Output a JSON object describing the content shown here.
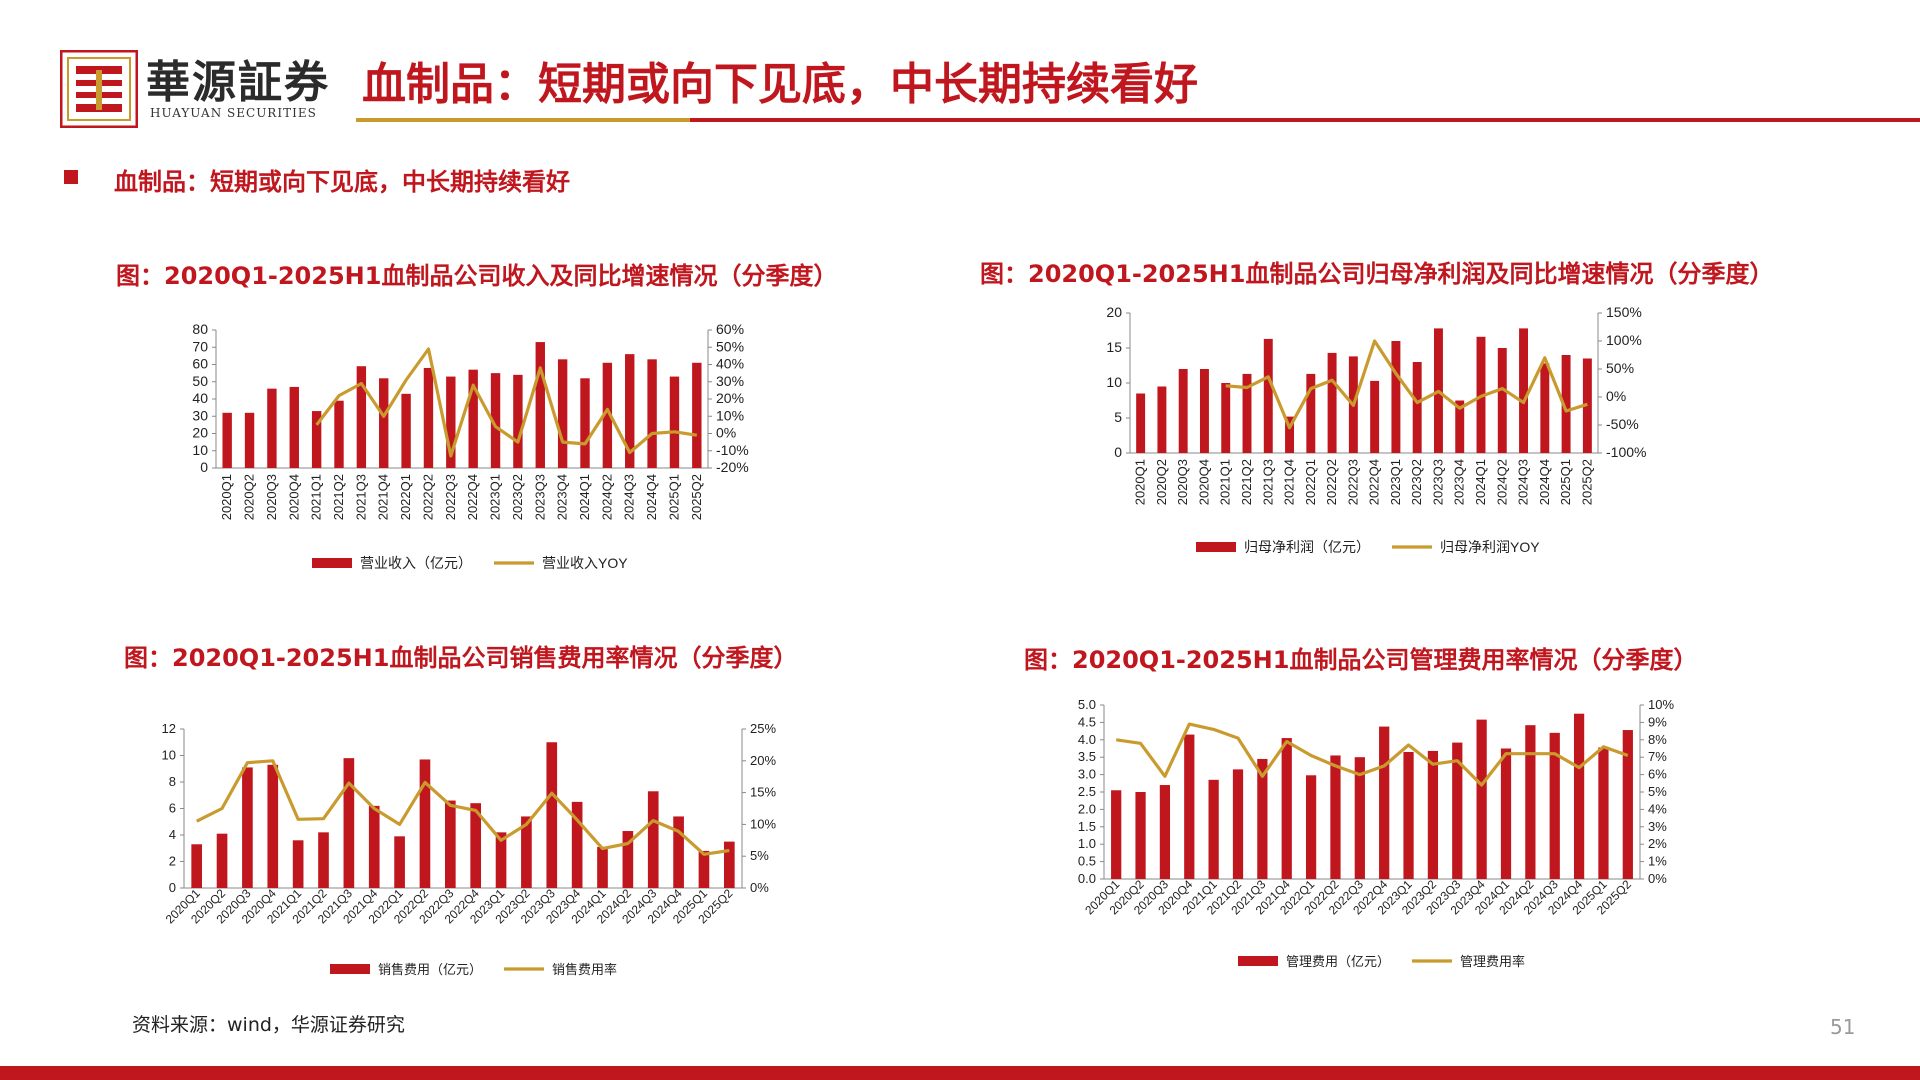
{
  "header": {
    "brand_cn": "華源証券",
    "brand_en": "HUAYUAN SECURITIES",
    "title": "血制品：短期或向下见底，中长期持续看好"
  },
  "section_title": "血制品：短期或向下见底，中长期持续看好",
  "footer": {
    "source": "资料来源：wind，华源证券研究",
    "page": "51"
  },
  "colors": {
    "accent_red": "#c0161e",
    "gold": "#c99a2e",
    "bar": "#c0161e",
    "line": "#c99a2e"
  },
  "chart_data": [
    {
      "type": "bar+line",
      "title": "图：2020Q1-2025H1血制品公司收入及同比增速情况（分季度）",
      "categories": [
        "2020Q1",
        "2020Q2",
        "2020Q3",
        "2020Q4",
        "2021Q1",
        "2021Q2",
        "2021Q3",
        "2021Q4",
        "2022Q1",
        "2022Q2",
        "2022Q3",
        "2022Q4",
        "2023Q1",
        "2023Q2",
        "2023Q3",
        "2023Q4",
        "2024Q1",
        "2024Q2",
        "2024Q3",
        "2024Q4",
        "2025Q1",
        "2025Q2"
      ],
      "left_axis": {
        "min": 0,
        "max": 80,
        "step": 10,
        "ticks": [
          "0",
          "10",
          "20",
          "30",
          "40",
          "50",
          "60",
          "70",
          "80"
        ]
      },
      "right_axis": {
        "min": -20,
        "max": 60,
        "step": 10,
        "ticks": [
          "-20%",
          "-10%",
          "0%",
          "10%",
          "20%",
          "30%",
          "40%",
          "50%",
          "60%"
        ]
      },
      "bar_series": {
        "name": "营业收入（亿元）",
        "values": [
          32,
          32,
          46,
          47,
          33,
          39,
          59,
          52,
          43,
          58,
          53,
          57,
          55,
          54,
          73,
          63,
          52,
          61,
          66,
          63,
          53,
          61
        ]
      },
      "line_series": {
        "name": "营业收入YOY",
        "values": [
          null,
          null,
          null,
          null,
          5,
          22,
          29,
          10,
          31,
          49,
          -13,
          28,
          4,
          -5,
          38,
          -5,
          -6,
          14,
          -11,
          0,
          1,
          -1
        ]
      }
    },
    {
      "type": "bar+line",
      "title": "图：2020Q1-2025H1血制品公司归母净利润及同比增速情况（分季度）",
      "categories": [
        "2020Q1",
        "2020Q2",
        "2020Q3",
        "2020Q4",
        "2021Q1",
        "2021Q2",
        "2021Q3",
        "2021Q4",
        "2022Q1",
        "2022Q2",
        "2022Q3",
        "2022Q4",
        "2023Q1",
        "2023Q2",
        "2023Q3",
        "2023Q4",
        "2024Q1",
        "2024Q2",
        "2024Q3",
        "2024Q4",
        "2025Q1",
        "2025Q2"
      ],
      "left_axis": {
        "min": 0,
        "max": 20,
        "step": 5,
        "ticks": [
          "0",
          "5",
          "10",
          "15",
          "20"
        ]
      },
      "right_axis": {
        "min": -100,
        "max": 150,
        "step": 50,
        "ticks": [
          "-100%",
          "-50%",
          "0%",
          "50%",
          "100%",
          "150%"
        ]
      },
      "bar_series": {
        "name": "归母净利润（亿元）",
        "values": [
          8.5,
          9.5,
          12,
          12,
          10,
          11.3,
          16.3,
          5.2,
          11.3,
          14.3,
          13.8,
          10.3,
          16,
          13,
          17.8,
          7.5,
          16.6,
          15,
          17.8,
          12.8,
          14,
          13.5
        ]
      },
      "line_series": {
        "name": "归母净利润YOY",
        "values": [
          null,
          null,
          null,
          null,
          20,
          17,
          36,
          -55,
          15,
          30,
          -15,
          100,
          42,
          -10,
          10,
          -20,
          1,
          15,
          -10,
          70,
          -25,
          -13
        ]
      }
    },
    {
      "type": "bar+line",
      "title": "图：2020Q1-2025H1血制品公司销售费用率情况（分季度）",
      "categories": [
        "2020Q1",
        "2020Q2",
        "2020Q3",
        "2020Q4",
        "2021Q1",
        "2021Q2",
        "2021Q3",
        "2021Q4",
        "2022Q1",
        "2022Q2",
        "2022Q3",
        "2022Q4",
        "2023Q1",
        "2023Q2",
        "2023Q3",
        "2023Q4",
        "2024Q1",
        "2024Q2",
        "2024Q3",
        "2024Q4",
        "2025Q1",
        "2025Q2"
      ],
      "left_axis": {
        "min": 0,
        "max": 12,
        "step": 2,
        "ticks": [
          "0",
          "2",
          "4",
          "6",
          "8",
          "10",
          "12"
        ]
      },
      "right_axis": {
        "min": 0,
        "max": 25,
        "step": 5,
        "ticks": [
          "0%",
          "5%",
          "10%",
          "15%",
          "20%",
          "25%"
        ]
      },
      "bar_series": {
        "name": "销售费用（亿元）",
        "values": [
          3.3,
          4.1,
          9.1,
          9.3,
          3.6,
          4.2,
          9.8,
          6.2,
          3.9,
          9.7,
          6.6,
          6.4,
          4.2,
          5.4,
          11,
          6.5,
          3.1,
          4.3,
          7.3,
          5.4,
          2.8,
          3.5
        ]
      },
      "line_series": {
        "name": "销售费用率",
        "values": [
          10.5,
          12.5,
          19.7,
          20,
          10.8,
          10.9,
          16.5,
          12.5,
          10,
          16.6,
          13,
          12.2,
          7.5,
          10,
          14.9,
          10.7,
          6.2,
          7,
          10.6,
          8.9,
          5.3,
          5.9
        ]
      }
    },
    {
      "type": "bar+line",
      "title": "图：2020Q1-2025H1血制品公司管理费用率情况（分季度）",
      "categories": [
        "2020Q1",
        "2020Q2",
        "2020Q3",
        "2020Q4",
        "2021Q1",
        "2021Q2",
        "2021Q3",
        "2021Q4",
        "2022Q1",
        "2022Q2",
        "2022Q3",
        "2022Q4",
        "2023Q1",
        "2023Q2",
        "2023Q3",
        "2023Q4",
        "2024Q1",
        "2024Q2",
        "2024Q3",
        "2024Q4",
        "2025Q1",
        "2025Q2"
      ],
      "left_axis": {
        "min": 0,
        "max": 5,
        "step": 0.5,
        "ticks": [
          "0.0",
          "0.5",
          "1.0",
          "1.5",
          "2.0",
          "2.5",
          "3.0",
          "3.5",
          "4.0",
          "4.5",
          "5.0"
        ]
      },
      "right_axis": {
        "min": 0,
        "max": 10,
        "step": 1,
        "ticks": [
          "0%",
          "1%",
          "2%",
          "3%",
          "4%",
          "5%",
          "6%",
          "7%",
          "8%",
          "9%",
          "10%"
        ]
      },
      "bar_series": {
        "name": "管理费用（亿元）",
        "values": [
          2.55,
          2.5,
          2.7,
          4.15,
          2.85,
          3.15,
          3.45,
          4.05,
          2.98,
          3.55,
          3.5,
          4.38,
          3.65,
          3.68,
          3.92,
          4.58,
          3.75,
          4.42,
          4.2,
          4.75,
          3.78,
          4.28
        ]
      },
      "line_series": {
        "name": "管理费用率",
        "values": [
          8,
          7.8,
          5.9,
          8.9,
          8.6,
          8.1,
          5.9,
          7.9,
          7.1,
          6.5,
          6,
          6.5,
          7.7,
          6.6,
          6.8,
          5.4,
          7.2,
          7.2,
          7.2,
          6.4,
          7.6,
          7.1
        ]
      }
    }
  ]
}
